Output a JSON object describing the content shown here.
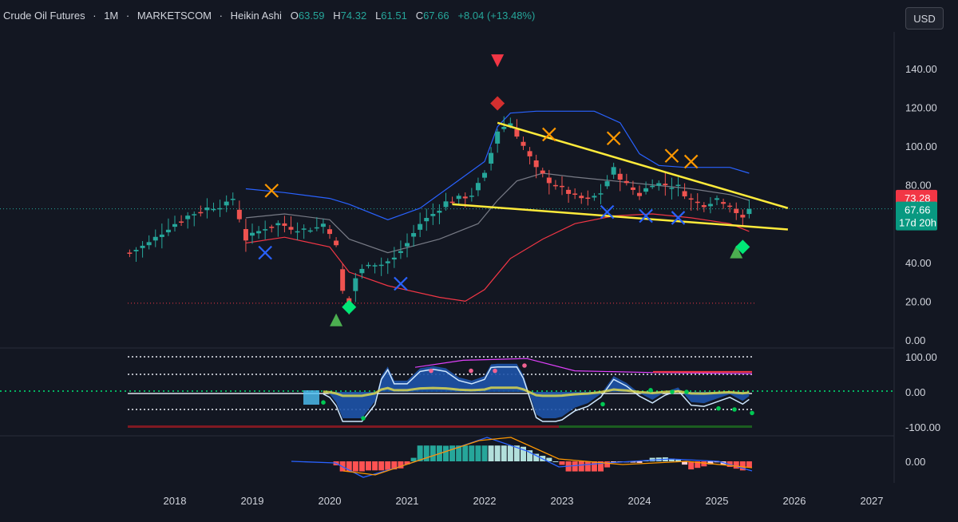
{
  "header": {
    "symbol": "Crude Oil Futures",
    "sep1": "·",
    "interval": "1M",
    "sep2": "·",
    "source": "MARKETSCOM",
    "sep3": "·",
    "chart_style": "Heikin Ashi",
    "open_label": "O",
    "open_value": "63.59",
    "high_label": "H",
    "high_value": "74.32",
    "low_label": "L",
    "low_value": "61.51",
    "close_label": "C",
    "close_value": "67.66",
    "change": "+8.04 (+13.48%)"
  },
  "currency_button": "USD",
  "price_axis": {
    "ticks": [
      "140.00",
      "120.00",
      "100.00",
      "80.00",
      "60.00",
      "40.00",
      "20.00",
      "0.00"
    ]
  },
  "osc_axis": {
    "ticks": [
      "100.00",
      "0.00",
      "-100.00"
    ]
  },
  "macd_axis": {
    "ticks": [
      "0.00"
    ]
  },
  "time_axis": {
    "ticks": [
      "2018",
      "2019",
      "2020",
      "2021",
      "2022",
      "2023",
      "2024",
      "2025",
      "2026",
      "2027"
    ]
  },
  "price_labels": {
    "upper": "73.28",
    "last": "67.66",
    "countdown": "17d 20h"
  },
  "colors": {
    "background": "#131722",
    "up": "#26a69a",
    "down": "#ef5350",
    "bb_upper": "#2962ff",
    "bb_basis": "#787b86",
    "bb_lower": "#f23645",
    "trendline": "#ffeb3b",
    "buy_signal": "#4caf50",
    "sell_signal": "#f23645",
    "cross_orange": "#ff9800",
    "cross_blue": "#2962ff"
  },
  "chart_data": {
    "type": "candlestick",
    "x_range": [
      "2017-05",
      "2025-06"
    ],
    "y_range": [
      0,
      150
    ],
    "price_series": [
      [
        "2017-06",
        45
      ],
      [
        "2017-09",
        50
      ],
      [
        "2017-12",
        58
      ],
      [
        "2018-03",
        64
      ],
      [
        "2018-06",
        68
      ],
      [
        "2018-09",
        70
      ],
      [
        "2018-10",
        73
      ],
      [
        "2018-11",
        63
      ],
      [
        "2018-12",
        52
      ],
      [
        "2019-01",
        54
      ],
      [
        "2019-03",
        58
      ],
      [
        "2019-05",
        60
      ],
      [
        "2019-07",
        58
      ],
      [
        "2019-09",
        57
      ],
      [
        "2019-11",
        58
      ],
      [
        "2019-12",
        60
      ],
      [
        "2020-01",
        56
      ],
      [
        "2020-02",
        48
      ],
      [
        "2020-03",
        25
      ],
      [
        "2020-04",
        18
      ],
      [
        "2020-05",
        32
      ],
      [
        "2020-07",
        40
      ],
      [
        "2020-09",
        39
      ],
      [
        "2020-11",
        42
      ],
      [
        "2021-01",
        50
      ],
      [
        "2021-03",
        60
      ],
      [
        "2021-05",
        65
      ],
      [
        "2021-07",
        71
      ],
      [
        "2021-09",
        73
      ],
      [
        "2021-11",
        75
      ],
      [
        "2022-01",
        85
      ],
      [
        "2022-03",
        108
      ],
      [
        "2022-05",
        112
      ],
      [
        "2022-07",
        100
      ],
      [
        "2022-09",
        88
      ],
      [
        "2022-11",
        82
      ],
      [
        "2023-01",
        78
      ],
      [
        "2023-03",
        74
      ],
      [
        "2023-05",
        72
      ],
      [
        "2023-07",
        76
      ],
      [
        "2023-09",
        88
      ],
      [
        "2023-11",
        80
      ],
      [
        "2024-01",
        75
      ],
      [
        "2024-03",
        81
      ],
      [
        "2024-05",
        80
      ],
      [
        "2024-07",
        79
      ],
      [
        "2024-09",
        72
      ],
      [
        "2024-11",
        70
      ],
      [
        "2025-01",
        73
      ],
      [
        "2025-03",
        70
      ],
      [
        "2025-05",
        62
      ],
      [
        "2025-06",
        67.66
      ]
    ],
    "bb_upper": [
      [
        "2018-12",
        78
      ],
      [
        "2019-06",
        76
      ],
      [
        "2020-01",
        73
      ],
      [
        "2020-04",
        70
      ],
      [
        "2020-10",
        62
      ],
      [
        "2021-03",
        68
      ],
      [
        "2021-08",
        80
      ],
      [
        "2022-01",
        92
      ],
      [
        "2022-03",
        110
      ],
      [
        "2022-05",
        117
      ],
      [
        "2022-09",
        118
      ],
      [
        "2023-01",
        118
      ],
      [
        "2023-06",
        118
      ],
      [
        "2023-10",
        112
      ],
      [
        "2024-01",
        96
      ],
      [
        "2024-04",
        90
      ],
      [
        "2024-08",
        89
      ],
      [
        "2025-03",
        89
      ],
      [
        "2025-06",
        86
      ]
    ],
    "bb_basis": [
      [
        "2018-12",
        63
      ],
      [
        "2019-06",
        65
      ],
      [
        "2020-01",
        62
      ],
      [
        "2020-04",
        52
      ],
      [
        "2020-10",
        45
      ],
      [
        "2021-06",
        52
      ],
      [
        "2021-12",
        60
      ],
      [
        "2022-03",
        72
      ],
      [
        "2022-06",
        82
      ],
      [
        "2022-10",
        86
      ],
      [
        "2023-03",
        84
      ],
      [
        "2023-09",
        82
      ],
      [
        "2024-03",
        80
      ],
      [
        "2024-09",
        78
      ],
      [
        "2025-03",
        75
      ],
      [
        "2025-06",
        72
      ]
    ],
    "bb_lower": [
      [
        "2018-12",
        50
      ],
      [
        "2019-06",
        53
      ],
      [
        "2020-01",
        48
      ],
      [
        "2020-04",
        35
      ],
      [
        "2020-10",
        28
      ],
      [
        "2021-06",
        22
      ],
      [
        "2021-10",
        20
      ],
      [
        "2022-01",
        26
      ],
      [
        "2022-05",
        42
      ],
      [
        "2022-10",
        52
      ],
      [
        "2023-03",
        60
      ],
      [
        "2023-09",
        64
      ],
      [
        "2024-03",
        65
      ],
      [
        "2024-09",
        63
      ],
      [
        "2025-03",
        60
      ],
      [
        "2025-06",
        56
      ]
    ],
    "trendlines": [
      {
        "from": [
          "2022-03",
          112
        ],
        "to": [
          "2025-12",
          68
        ]
      },
      {
        "from": [
          "2021-08",
          70
        ],
        "to": [
          "2025-12",
          57
        ]
      }
    ],
    "markers": [
      {
        "type": "sell_triangle",
        "date": "2022-03",
        "value": 144
      },
      {
        "type": "sell_diamond",
        "date": "2022-03",
        "value": 122
      },
      {
        "type": "buy_triangle",
        "date": "2020-02",
        "value": 10
      },
      {
        "type": "buy_diamond",
        "date": "2020-04",
        "value": 17
      },
      {
        "type": "buy_triangle",
        "date": "2025-04",
        "value": 45
      },
      {
        "type": "buy_diamond",
        "date": "2025-05",
        "value": 48
      },
      {
        "type": "cross_orange",
        "date": "2019-04",
        "value": 77
      },
      {
        "type": "cross_orange",
        "date": "2022-11",
        "value": 106
      },
      {
        "type": "cross_orange",
        "date": "2023-09",
        "value": 104
      },
      {
        "type": "cross_orange",
        "date": "2024-06",
        "value": 95
      },
      {
        "type": "cross_orange",
        "date": "2024-09",
        "value": 92
      },
      {
        "type": "cross_blue",
        "date": "2019-03",
        "value": 45
      },
      {
        "type": "cross_blue",
        "date": "2020-12",
        "value": 29
      },
      {
        "type": "cross_blue",
        "date": "2023-08",
        "value": 66
      },
      {
        "type": "cross_blue",
        "date": "2024-02",
        "value": 64
      },
      {
        "type": "cross_blue",
        "date": "2024-07",
        "value": 63
      }
    ]
  }
}
